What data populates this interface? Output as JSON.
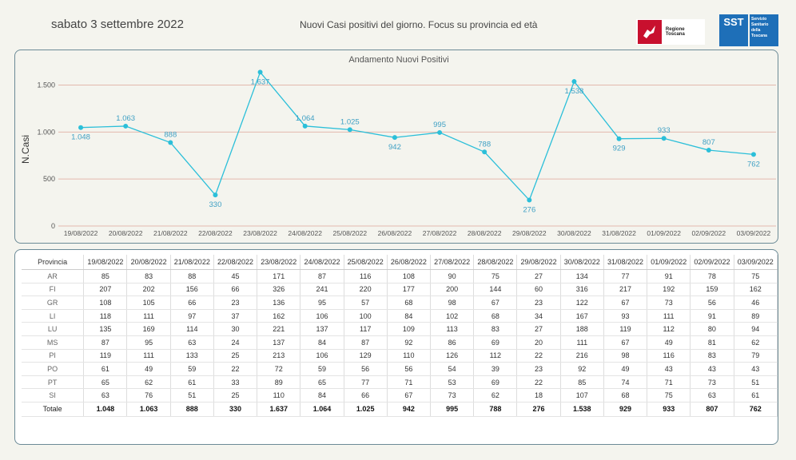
{
  "header": {
    "date": "sabato 3 settembre 2022",
    "subtitle": "Nuovi Casi positivi del giorno. Focus su provincia ed età",
    "logo_regione": "Regione Toscana",
    "logo_sst_short": "SST",
    "logo_sst_lines": [
      "Servizio",
      "Sanitario",
      "della",
      "Toscana"
    ]
  },
  "colors": {
    "line": "#2bbfd9",
    "grid": "#e3b8ad",
    "label": "#3fa0c4"
  },
  "chart_data": {
    "type": "line",
    "title": "Andamento Nuovi Positivi",
    "ylabel": "N.Casi",
    "xlabel": "",
    "ylim": [
      0,
      1700
    ],
    "yticks": [
      0,
      500,
      1000,
      1500
    ],
    "ytick_labels": [
      "0",
      "500",
      "1.000",
      "1.500"
    ],
    "grid": true,
    "x": [
      "19/08/2022",
      "20/08/2022",
      "21/08/2022",
      "22/08/2022",
      "23/08/2022",
      "24/08/2022",
      "25/08/2022",
      "26/08/2022",
      "27/08/2022",
      "28/08/2022",
      "29/08/2022",
      "30/08/2022",
      "31/08/2022",
      "01/09/2022",
      "02/09/2022",
      "03/09/2022"
    ],
    "values": [
      1048,
      1063,
      888,
      330,
      1637,
      1064,
      1025,
      942,
      995,
      788,
      276,
      1538,
      929,
      933,
      807,
      762
    ],
    "value_labels": [
      "1.048",
      "1.063",
      "888",
      "330",
      "1.637",
      "1.064",
      "1.025",
      "942",
      "995",
      "788",
      "276",
      "1.538",
      "929",
      "933",
      "807",
      "762"
    ],
    "label_position": [
      "below",
      "above",
      "above",
      "below",
      "below",
      "above",
      "above",
      "below",
      "above",
      "above",
      "below",
      "below",
      "below",
      "above",
      "above",
      "below"
    ]
  },
  "table": {
    "header_label": "Provincia",
    "columns": [
      "19/08/2022",
      "20/08/2022",
      "21/08/2022",
      "22/08/2022",
      "23/08/2022",
      "24/08/2022",
      "25/08/2022",
      "26/08/2022",
      "27/08/2022",
      "28/08/2022",
      "29/08/2022",
      "30/08/2022",
      "31/08/2022",
      "01/09/2022",
      "02/09/2022",
      "03/09/2022"
    ],
    "rows": [
      {
        "name": "AR",
        "values": [
          "85",
          "83",
          "88",
          "45",
          "171",
          "87",
          "116",
          "108",
          "90",
          "75",
          "27",
          "134",
          "77",
          "91",
          "78",
          "75"
        ]
      },
      {
        "name": "FI",
        "values": [
          "207",
          "202",
          "156",
          "66",
          "326",
          "241",
          "220",
          "177",
          "200",
          "144",
          "60",
          "316",
          "217",
          "192",
          "159",
          "162"
        ]
      },
      {
        "name": "GR",
        "values": [
          "108",
          "105",
          "66",
          "23",
          "136",
          "95",
          "57",
          "68",
          "98",
          "67",
          "23",
          "122",
          "67",
          "73",
          "56",
          "46"
        ]
      },
      {
        "name": "LI",
        "values": [
          "118",
          "111",
          "97",
          "37",
          "162",
          "106",
          "100",
          "84",
          "102",
          "68",
          "34",
          "167",
          "93",
          "111",
          "91",
          "89"
        ]
      },
      {
        "name": "LU",
        "values": [
          "135",
          "169",
          "114",
          "30",
          "221",
          "137",
          "117",
          "109",
          "113",
          "83",
          "27",
          "188",
          "119",
          "112",
          "80",
          "94"
        ]
      },
      {
        "name": "MS",
        "values": [
          "87",
          "95",
          "63",
          "24",
          "137",
          "84",
          "87",
          "92",
          "86",
          "69",
          "20",
          "111",
          "67",
          "49",
          "81",
          "62"
        ]
      },
      {
        "name": "PI",
        "values": [
          "119",
          "111",
          "133",
          "25",
          "213",
          "106",
          "129",
          "110",
          "126",
          "112",
          "22",
          "216",
          "98",
          "116",
          "83",
          "79"
        ]
      },
      {
        "name": "PO",
        "values": [
          "61",
          "49",
          "59",
          "22",
          "72",
          "59",
          "56",
          "56",
          "54",
          "39",
          "23",
          "92",
          "49",
          "43",
          "43",
          "43"
        ]
      },
      {
        "name": "PT",
        "values": [
          "65",
          "62",
          "61",
          "33",
          "89",
          "65",
          "77",
          "71",
          "53",
          "69",
          "22",
          "85",
          "74",
          "71",
          "73",
          "51"
        ]
      },
      {
        "name": "SI",
        "values": [
          "63",
          "76",
          "51",
          "25",
          "110",
          "84",
          "66",
          "67",
          "73",
          "62",
          "18",
          "107",
          "68",
          "75",
          "63",
          "61"
        ]
      }
    ],
    "total": {
      "name": "Totale",
      "values": [
        "1.048",
        "1.063",
        "888",
        "330",
        "1.637",
        "1.064",
        "1.025",
        "942",
        "995",
        "788",
        "276",
        "1.538",
        "929",
        "933",
        "807",
        "762"
      ]
    }
  }
}
